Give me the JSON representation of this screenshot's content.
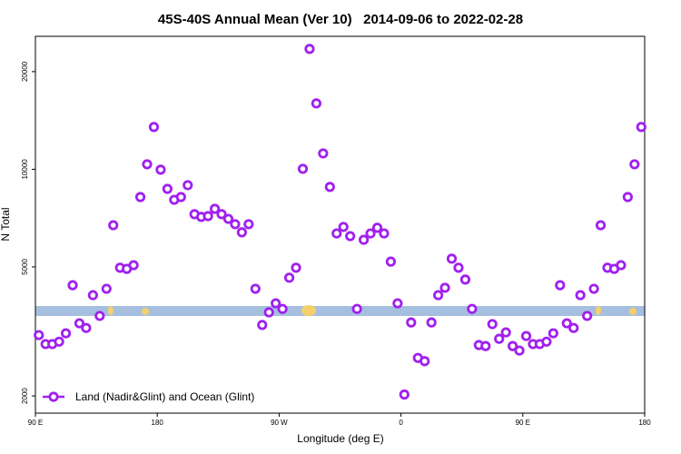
{
  "chart_data": {
    "type": "scatter",
    "title": "45S-40S Annual Mean (Ver 10)   2014-09-06 to 2022-02-28",
    "x_label": "Longitude (deg E)",
    "y_label": "N Total",
    "log_y": true,
    "legend": "lower left",
    "xlim": [
      90,
      540
    ],
    "xticks": [
      {
        "value": 90,
        "label": "90 E"
      },
      180,
      {
        "value": 270,
        "label": "90 W"
      },
      {
        "value": 360,
        "label": "0"
      },
      {
        "value": 450,
        "label": "90 E"
      },
      {
        "value": 540,
        "label": "180"
      }
    ],
    "ylim": [
      1770,
      25700
    ],
    "yticks": [
      2000,
      5000,
      10000,
      20000
    ],
    "x": [
      92.5,
      97.5,
      102.5,
      107.5,
      112.5,
      117.5,
      122.5,
      127.5,
      132.5,
      137.5,
      142.5,
      147.5,
      152.5,
      157.5,
      162.5,
      167.5,
      172.5,
      177.5,
      182.5,
      187.5,
      192.5,
      197.5,
      202.5,
      207.5,
      212.5,
      217.5,
      222.5,
      227.5,
      232.5,
      237.5,
      242.5,
      247.5,
      252.5,
      257.5,
      262.5,
      267.5,
      272.5,
      277.5,
      282.5,
      287.5,
      292.5,
      297.5,
      302.5,
      307.5,
      312.5,
      317.5,
      322.5,
      327.5,
      332.5,
      337.5,
      342.5,
      347.5,
      352.5,
      357.5,
      362.5,
      367.5,
      372.5,
      377.5,
      382.5,
      387.5,
      392.5,
      397.5,
      402.5,
      407.5,
      412.5,
      417.5,
      422.5,
      427.5,
      432.5,
      437.5,
      442.5,
      447.5,
      452.5,
      457.5,
      462.5,
      467.5,
      472.5,
      477.5,
      482.5,
      487.5,
      492.5,
      497.5,
      502.5,
      507.5,
      512.5,
      517.5,
      522.5,
      527.5,
      532.5,
      537.5
    ],
    "series": [
      {
        "name": "Land (Nadir&Glint) and Ocean (Glint)",
        "color": "#a020f0",
        "values": [
          3080,
          2890,
          2890,
          2940,
          3120,
          4390,
          3350,
          3240,
          4090,
          3530,
          4280,
          6720,
          4970,
          4930,
          5060,
          8210,
          10360,
          13500,
          9970,
          8700,
          8050,
          8210,
          8930,
          7270,
          7130,
          7170,
          7550,
          7270,
          7030,
          6770,
          6390,
          6770,
          4280,
          3310,
          3620,
          3860,
          3710,
          4630,
          4970,
          10030,
          23500,
          15960,
          11190,
          8820,
          6340,
          6640,
          6220,
          3710,
          6060,
          6340,
          6600,
          6340,
          5190,
          3860,
          2020,
          3370,
          2620,
          2560,
          3370,
          4090,
          4310,
          5300,
          4970,
          4570,
          3710,
          2870,
          2850,
          3330,
          3000,
          3140,
          2850,
          2760,
          3060,
          2890,
          2890,
          2940,
          3120,
          4390,
          3350,
          3240,
          4090,
          3530,
          4280,
          6720,
          4970,
          4930,
          5060,
          8210,
          10360,
          13500
        ]
      }
    ]
  }
}
